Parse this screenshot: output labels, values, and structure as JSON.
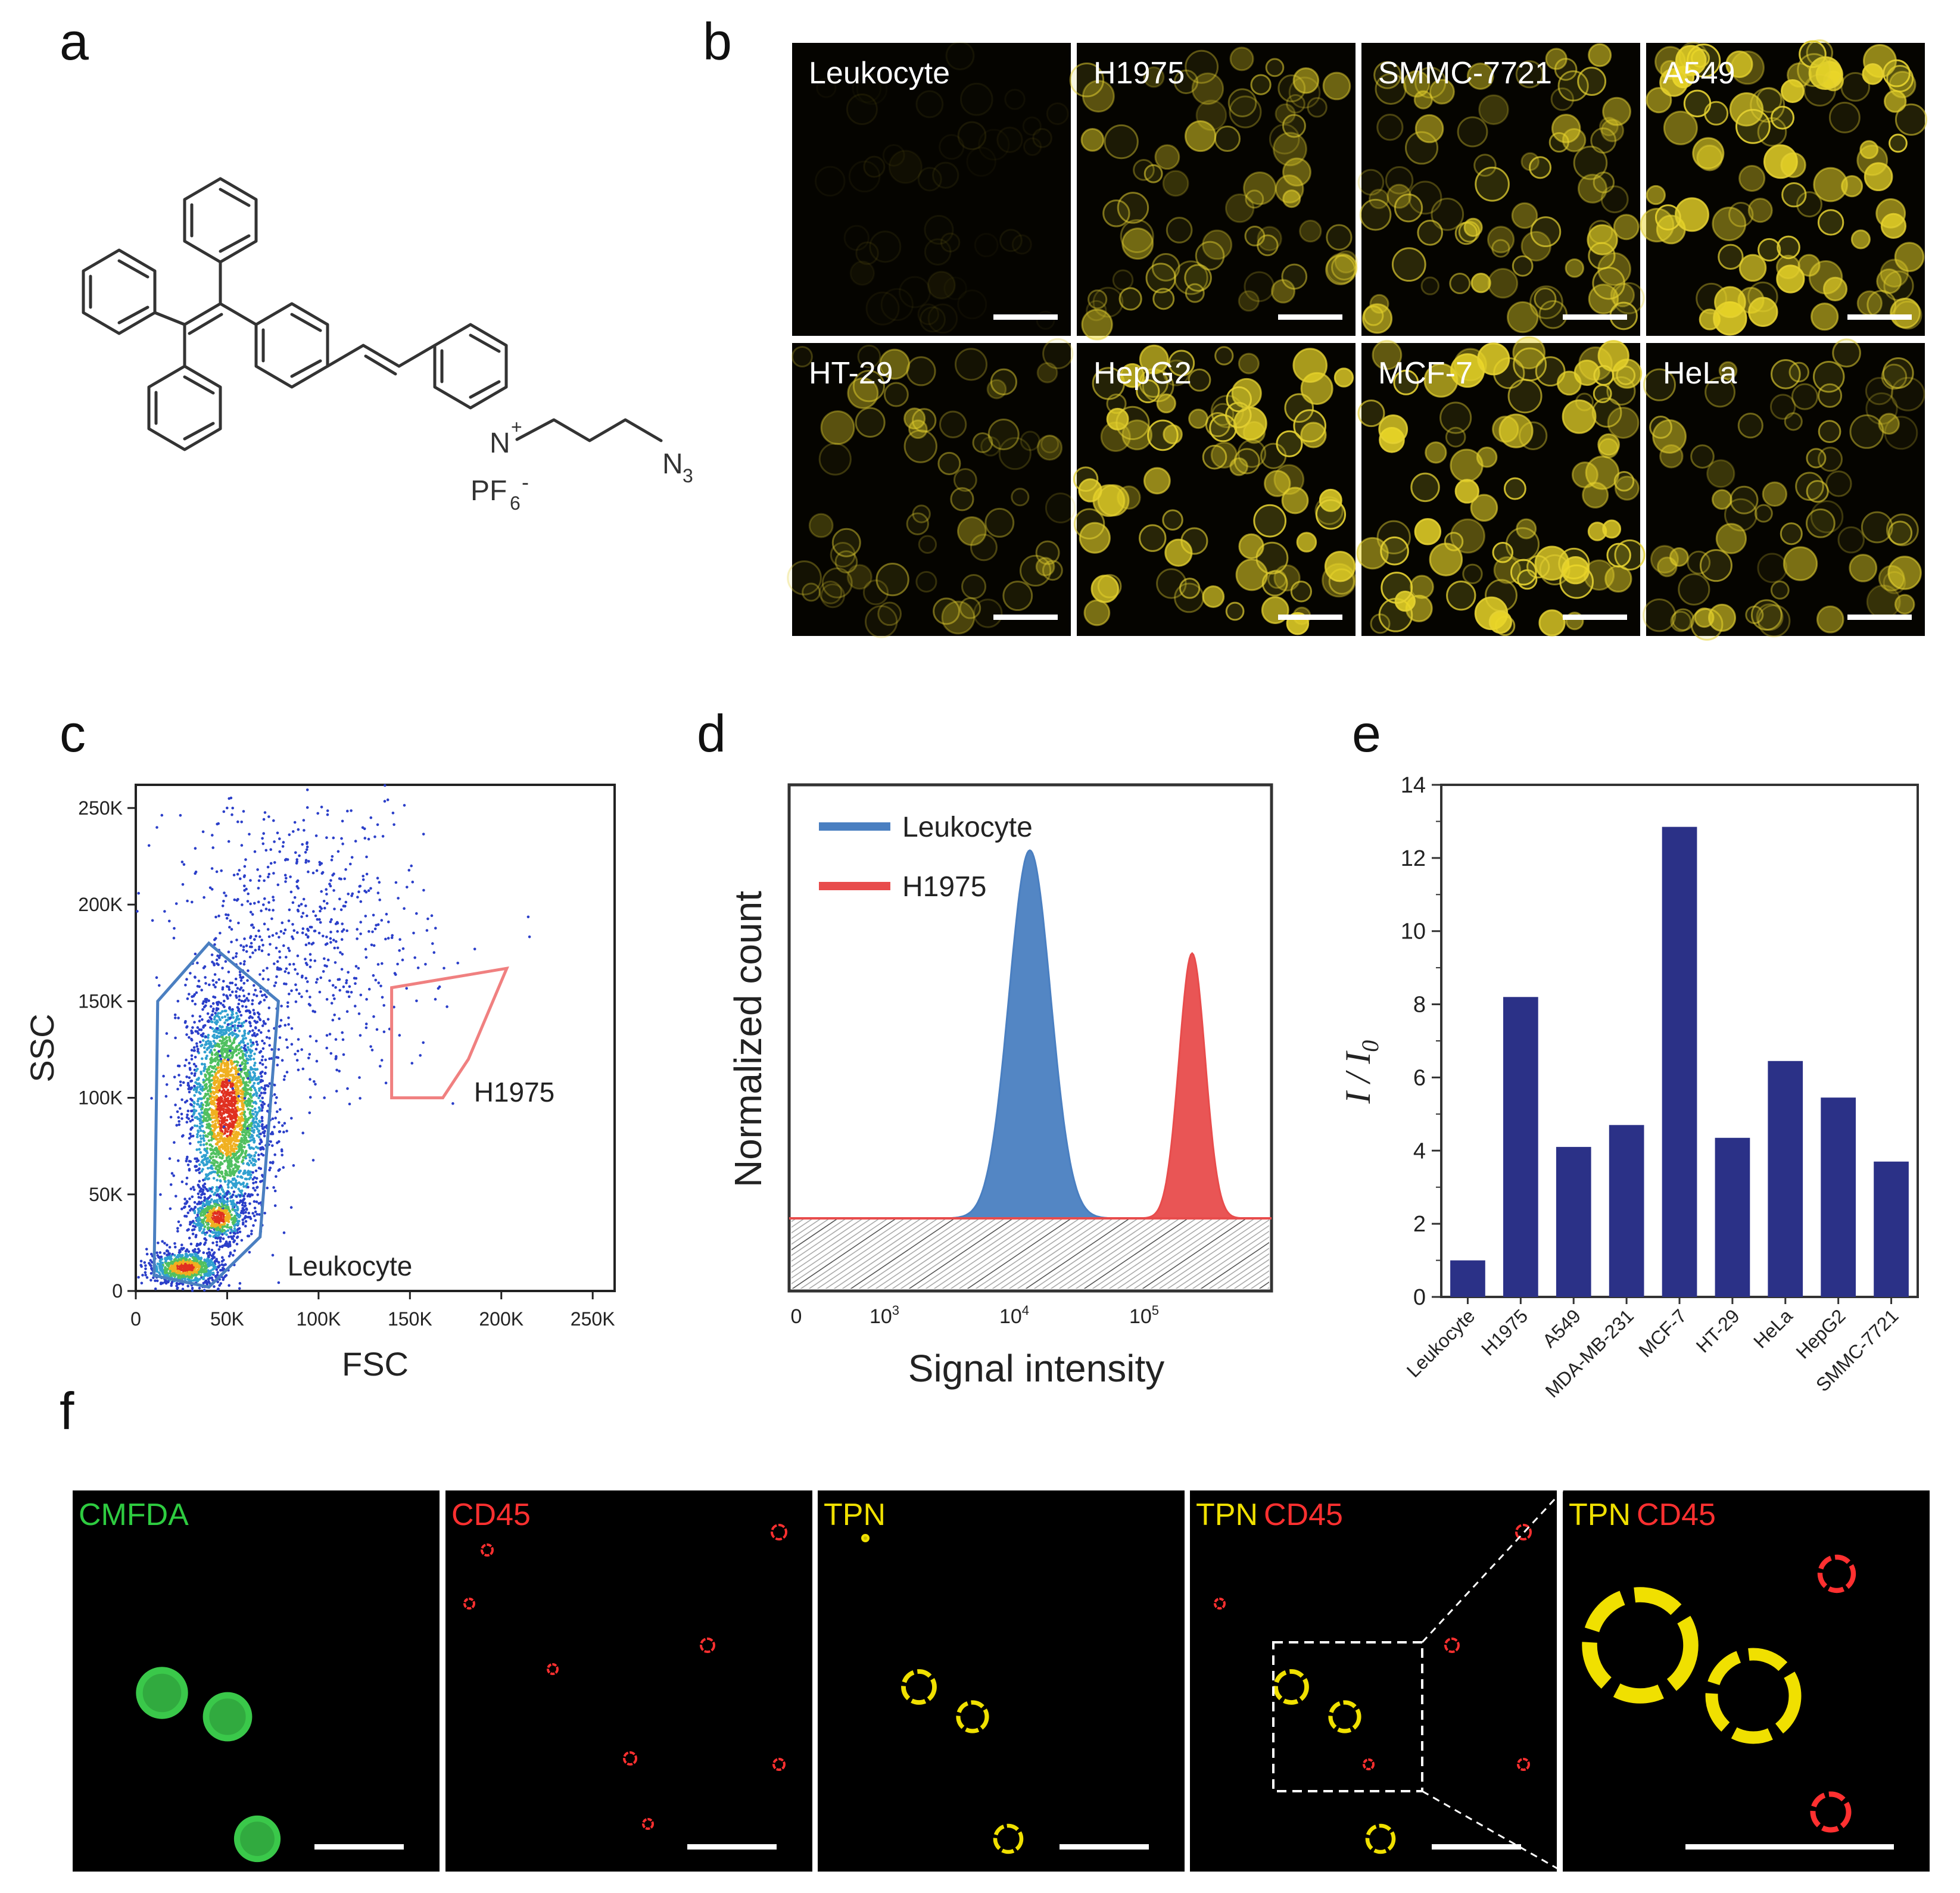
{
  "panel_labels": {
    "a": "a",
    "b": "b",
    "c": "c",
    "d": "d",
    "e": "e",
    "f": "f"
  },
  "structure": {
    "cation": "N",
    "charge": "+",
    "counterion": "PF",
    "counterion_sub": "6",
    "counterion_charge": "-",
    "azide": "N",
    "azide_sub": "3"
  },
  "micrographs_b": [
    {
      "label": "Leukocyte",
      "brightness": 0.08
    },
    {
      "label": "H1975",
      "brightness": 0.55
    },
    {
      "label": "SMMC-7721",
      "brightness": 0.7
    },
    {
      "label": "A549",
      "brightness": 0.95
    },
    {
      "label": "HT-29",
      "brightness": 0.45
    },
    {
      "label": "HepG2",
      "brightness": 0.85
    },
    {
      "label": "MCF-7",
      "brightness": 0.9
    },
    {
      "label": "HeLa",
      "brightness": 0.6
    }
  ],
  "chart_c": {
    "type": "scatter",
    "xlabel": "FSC",
    "ylabel": "SSC",
    "x_ticks": [
      "0",
      "50K",
      "100K",
      "150K",
      "200K",
      "250K"
    ],
    "y_ticks": [
      "0",
      "50K",
      "100K",
      "150K",
      "200K",
      "250K"
    ],
    "xlim": [
      0,
      262000
    ],
    "ylim": [
      0,
      262000
    ],
    "gates": [
      {
        "name": "Leukocyte",
        "color": "#4a7fc1",
        "polygon": [
          [
            10000,
            8000
          ],
          [
            12000,
            150000
          ],
          [
            40000,
            180000
          ],
          [
            78000,
            150000
          ],
          [
            68000,
            28000
          ],
          [
            40000,
            2000
          ]
        ]
      },
      {
        "name": "H1975",
        "color": "#f08080",
        "polygon": [
          [
            140000,
            100000
          ],
          [
            140000,
            157000
          ],
          [
            203000,
            167000
          ],
          [
            182000,
            120000
          ],
          [
            168000,
            100000
          ]
        ]
      }
    ],
    "clusters": [
      {
        "x": 50000,
        "y": 95000,
        "sx": 11000,
        "sy": 30000,
        "n": 2600
      },
      {
        "x": 45000,
        "y": 38000,
        "sx": 8000,
        "sy": 6000,
        "n": 500
      },
      {
        "x": 27000,
        "y": 12000,
        "sx": 10000,
        "sy": 4500,
        "n": 800
      },
      {
        "x": 90000,
        "y": 180000,
        "sx": 35000,
        "sy": 40000,
        "n": 700
      }
    ]
  },
  "chart_d": {
    "type": "area",
    "xlabel": "Signal intensity",
    "ylabel": "Normalized count",
    "x_ticks": [
      "0",
      "10",
      "10",
      "10"
    ],
    "x_tick_exponents": [
      "",
      "3",
      "4",
      "5"
    ],
    "legend_position": "top-left",
    "series": [
      {
        "name": "Leukocyte",
        "color": "#4a7fc1",
        "peak_log10": 4.12,
        "width": 0.16,
        "height": 1.0
      },
      {
        "name": "H1975",
        "color": "#e84c4c",
        "peak_log10": 5.37,
        "width": 0.1,
        "height": 0.72
      }
    ]
  },
  "chart_e": {
    "type": "bar",
    "ylabel": "I / I",
    "ylabel_sub": "0",
    "categories": [
      "Leukocyte",
      "H1975",
      "A549",
      "MDA-MB-231",
      "MCF-7",
      "HT-29",
      "HeLa",
      "HepG2",
      "SMMC-7721"
    ],
    "values": [
      1.0,
      8.2,
      4.1,
      4.7,
      12.85,
      4.35,
      6.45,
      5.45,
      3.7
    ],
    "ylim": [
      0,
      14
    ],
    "y_ticks": [
      "0",
      "2",
      "4",
      "6",
      "8",
      "10",
      "12",
      "14"
    ],
    "bar_color": "#2b3187"
  },
  "micrographs_f": [
    {
      "labels": [
        {
          "text": "CMFDA",
          "color": "#2ecc40"
        }
      ]
    },
    {
      "labels": [
        {
          "text": "CD45",
          "color": "#ff3030"
        }
      ]
    },
    {
      "labels": [
        {
          "text": "TPN",
          "color": "#f0e000"
        }
      ]
    },
    {
      "labels": [
        {
          "text": "TPN",
          "color": "#f0e000"
        },
        {
          "text": "CD45",
          "color": "#ff3030"
        }
      ]
    },
    {
      "labels": [
        {
          "text": "TPN",
          "color": "#f0e000"
        },
        {
          "text": "CD45",
          "color": "#ff3030"
        }
      ]
    }
  ]
}
